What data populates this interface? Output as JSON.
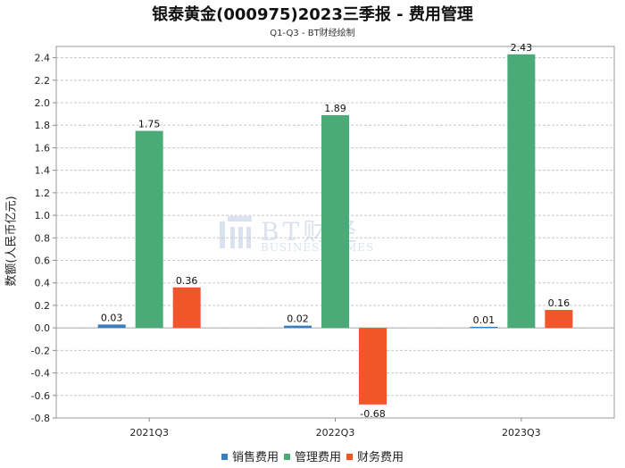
{
  "chart_data": {
    "type": "bar",
    "title": "银泰黄金(000975)2023三季报 - 费用管理",
    "subtitle": "Q1-Q3 - BT财经绘制",
    "xlabel": "",
    "ylabel": "数额(人民币亿元)",
    "categories": [
      "2021Q3",
      "2022Q3",
      "2023Q3"
    ],
    "series": [
      {
        "name": "销售费用",
        "color": "#3a7ebf",
        "values": [
          0.03,
          0.02,
          0.01
        ]
      },
      {
        "name": "管理费用",
        "color": "#4aab78",
        "values": [
          1.75,
          1.89,
          2.43
        ]
      },
      {
        "name": "财务费用",
        "color": "#f0562a",
        "values": [
          0.36,
          -0.68,
          0.16
        ]
      }
    ],
    "ylim": [
      -0.8,
      2.5
    ],
    "yticks": [
      "-0.8",
      "-0.6",
      "-0.4",
      "-0.2",
      "0.0",
      "0.2",
      "0.4",
      "0.6",
      "0.8",
      "1.0",
      "1.2",
      "1.4",
      "1.6",
      "1.8",
      "2.0",
      "2.2",
      "2.4"
    ],
    "grid": true,
    "legend_position": "bottom"
  },
  "watermark": {
    "brand": "BT财经",
    "sub": "BUSINESS TIMES",
    "color": "#3a5da8"
  }
}
